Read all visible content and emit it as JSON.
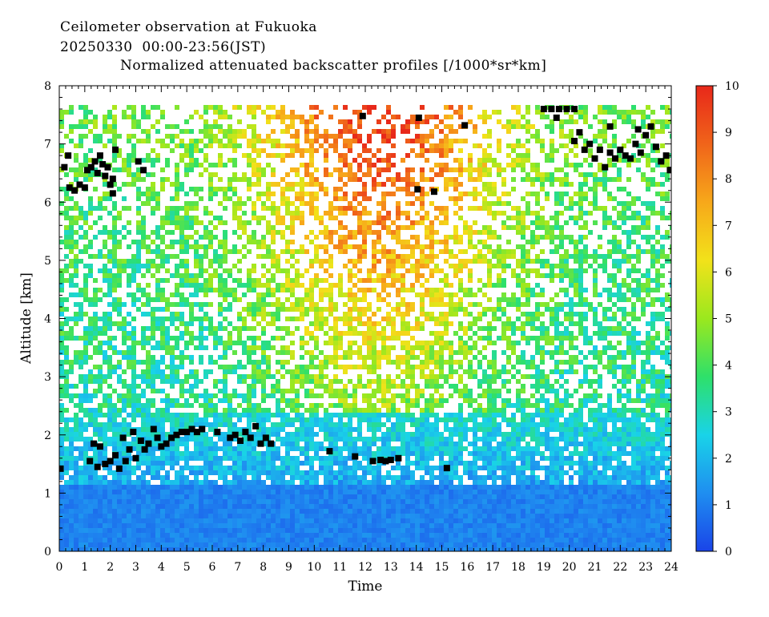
{
  "header": {
    "line1": "Ceilometer observation at Fukuoka",
    "line2": "20250330  00:00-23:56(JST)"
  },
  "chart_data": {
    "type": "heatmap",
    "title": "Normalized attenuated backscatter profiles [/1000*sr*km]",
    "xlabel": "Time",
    "ylabel": "Altitude [km]",
    "xlim": [
      0,
      24
    ],
    "ylim": [
      0,
      8
    ],
    "x_ticks": [
      0,
      1,
      2,
      3,
      4,
      5,
      6,
      7,
      8,
      9,
      10,
      11,
      12,
      13,
      14,
      15,
      16,
      17,
      18,
      19,
      20,
      21,
      22,
      23,
      24
    ],
    "y_ticks": [
      0,
      1,
      2,
      3,
      4,
      5,
      6,
      7,
      8
    ],
    "max_altitude_observed": 7.7,
    "colorbar": {
      "range": [
        0,
        10
      ],
      "ticks": [
        0,
        1,
        2,
        3,
        4,
        5,
        6,
        7,
        8,
        9,
        10
      ],
      "colors": [
        "#1a44e8",
        "#1f8ef0",
        "#19d3e8",
        "#2ee06a",
        "#9be81e",
        "#f2e21a",
        "#f7a81a",
        "#f0641a",
        "#e8281a"
      ]
    },
    "cloud_base_color": "#000000",
    "cloud_base_points": [
      [
        0.05,
        1.42
      ],
      [
        1.2,
        1.55
      ],
      [
        1.35,
        1.85
      ],
      [
        1.5,
        1.45
      ],
      [
        1.6,
        1.8
      ],
      [
        1.8,
        1.5
      ],
      [
        2.0,
        1.55
      ],
      [
        2.2,
        1.65
      ],
      [
        2.35,
        1.42
      ],
      [
        2.5,
        1.95
      ],
      [
        2.6,
        1.55
      ],
      [
        2.75,
        1.75
      ],
      [
        2.9,
        2.05
      ],
      [
        3.0,
        1.6
      ],
      [
        3.2,
        1.9
      ],
      [
        3.35,
        1.75
      ],
      [
        3.5,
        1.85
      ],
      [
        3.7,
        2.1
      ],
      [
        3.85,
        1.95
      ],
      [
        4.0,
        1.8
      ],
      [
        4.2,
        1.85
      ],
      [
        4.4,
        1.95
      ],
      [
        4.6,
        2.0
      ],
      [
        4.8,
        2.05
      ],
      [
        5.0,
        2.05
      ],
      [
        5.2,
        2.1
      ],
      [
        5.4,
        2.05
      ],
      [
        5.6,
        2.1
      ],
      [
        6.2,
        2.05
      ],
      [
        6.7,
        1.95
      ],
      [
        6.9,
        2.0
      ],
      [
        7.1,
        1.9
      ],
      [
        7.3,
        2.05
      ],
      [
        7.5,
        1.95
      ],
      [
        7.7,
        2.15
      ],
      [
        7.9,
        1.85
      ],
      [
        8.1,
        1.95
      ],
      [
        8.3,
        1.85
      ],
      [
        10.6,
        1.72
      ],
      [
        11.6,
        1.63
      ],
      [
        12.3,
        1.55
      ],
      [
        12.6,
        1.57
      ],
      [
        12.8,
        1.55
      ],
      [
        13.0,
        1.57
      ],
      [
        13.3,
        1.6
      ],
      [
        15.2,
        1.43
      ],
      [
        0.2,
        6.6
      ],
      [
        0.35,
        6.8
      ],
      [
        0.4,
        6.25
      ],
      [
        0.6,
        6.2
      ],
      [
        0.8,
        6.3
      ],
      [
        1.0,
        6.25
      ],
      [
        1.1,
        6.55
      ],
      [
        1.25,
        6.6
      ],
      [
        1.4,
        6.7
      ],
      [
        1.5,
        6.5
      ],
      [
        1.6,
        6.8
      ],
      [
        1.7,
        6.65
      ],
      [
        1.8,
        6.45
      ],
      [
        1.9,
        6.6
      ],
      [
        2.0,
        6.3
      ],
      [
        2.1,
        6.4
      ],
      [
        2.2,
        6.9
      ],
      [
        2.1,
        6.15
      ],
      [
        3.3,
        6.55
      ],
      [
        3.1,
        6.7
      ],
      [
        11.9,
        7.48
      ],
      [
        14.1,
        7.45
      ],
      [
        15.9,
        7.32
      ],
      [
        14.05,
        6.22
      ],
      [
        14.7,
        6.18
      ],
      [
        19.0,
        7.6
      ],
      [
        19.3,
        7.6
      ],
      [
        19.6,
        7.6
      ],
      [
        19.9,
        7.6
      ],
      [
        20.2,
        7.6
      ],
      [
        19.5,
        7.45
      ],
      [
        20.2,
        7.05
      ],
      [
        20.4,
        7.2
      ],
      [
        20.6,
        6.9
      ],
      [
        20.8,
        7.0
      ],
      [
        21.0,
        6.75
      ],
      [
        21.2,
        6.9
      ],
      [
        21.4,
        6.6
      ],
      [
        21.6,
        6.85
      ],
      [
        21.8,
        6.75
      ],
      [
        22.0,
        6.9
      ],
      [
        22.2,
        6.8
      ],
      [
        22.4,
        6.75
      ],
      [
        22.6,
        7.0
      ],
      [
        22.8,
        6.85
      ],
      [
        23.0,
        7.15
      ],
      [
        23.2,
        7.3
      ],
      [
        23.4,
        6.95
      ],
      [
        23.6,
        6.7
      ],
      [
        23.8,
        6.8
      ],
      [
        23.95,
        6.55
      ],
      [
        21.6,
        7.3
      ],
      [
        22.7,
        7.25
      ]
    ]
  }
}
